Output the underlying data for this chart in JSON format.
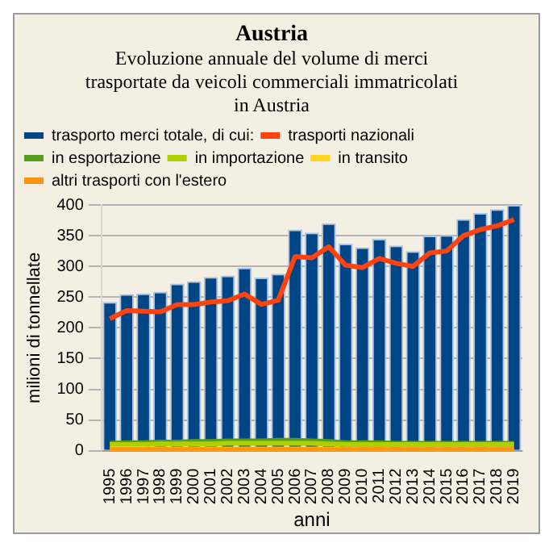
{
  "chart_data": {
    "type": "bar",
    "title": "Austria",
    "subtitle": "Evoluzione annuale del volume di merci trasportate da veicoli commerciali immatricolati in Austria",
    "xlabel": "anni",
    "ylabel": "milioni di tonnellate",
    "categories": [
      "1995",
      "1996",
      "1997",
      "1998",
      "1999",
      "2000",
      "2001",
      "2002",
      "2003",
      "2004",
      "2005",
      "2006",
      "2007",
      "2008",
      "2009",
      "2010",
      "2011",
      "2012",
      "2013",
      "2014",
      "2015",
      "2016",
      "2017",
      "2018",
      "2019"
    ],
    "series": [
      {
        "name": "trasporto merci totale, di cui:",
        "color": "#004586",
        "values": [
          242,
          255,
          256,
          259,
          272,
          276,
          283,
          285,
          298,
          282,
          288,
          360,
          355,
          370,
          337,
          331,
          345,
          334,
          325,
          350,
          351,
          377,
          387,
          393,
          400
        ]
      },
      {
        "name": "trasporti nazionali",
        "type": "line",
        "color": "#ff420e",
        "values": [
          215,
          228,
          227,
          226,
          238,
          238,
          242,
          244,
          255,
          238,
          245,
          316,
          314,
          332,
          302,
          298,
          313,
          305,
          300,
          322,
          325,
          350,
          360,
          366,
          376
        ]
      },
      {
        "name": "in esportazione",
        "type": "line",
        "color": "#579d1c",
        "values": [
          12,
          13,
          13,
          14,
          14,
          15,
          15,
          16,
          16,
          16,
          17,
          17,
          16,
          15,
          13,
          13,
          13,
          12,
          12,
          12,
          12,
          12,
          12,
          12,
          12
        ]
      },
      {
        "name": "in importazione",
        "type": "line",
        "color": "#aecf00",
        "values": [
          10,
          10,
          10,
          11,
          11,
          11,
          11,
          12,
          12,
          12,
          12,
          12,
          12,
          11,
          10,
          10,
          10,
          10,
          10,
          10,
          10,
          10,
          10,
          10,
          10
        ]
      },
      {
        "name": "in transito",
        "type": "line",
        "color": "#ffd320",
        "values": [
          3,
          3,
          3,
          3,
          3,
          3,
          3,
          3,
          3,
          3,
          3,
          3,
          3,
          3,
          2,
          2,
          2,
          2,
          2,
          2,
          2,
          2,
          2,
          2,
          2
        ]
      },
      {
        "name": "altri trasporti con l'estero",
        "type": "line",
        "color": "#ff950e",
        "values": [
          2,
          2,
          2,
          2,
          2,
          2,
          2,
          2,
          2,
          2,
          2,
          2,
          2,
          2,
          2,
          2,
          2,
          2,
          2,
          2,
          2,
          2,
          2,
          2,
          2
        ]
      }
    ],
    "ylim": [
      0,
      400
    ],
    "yticks": [
      0,
      50,
      100,
      150,
      200,
      250,
      300,
      350,
      400
    ],
    "grid": "y",
    "legend": "top",
    "marker": "none"
  }
}
